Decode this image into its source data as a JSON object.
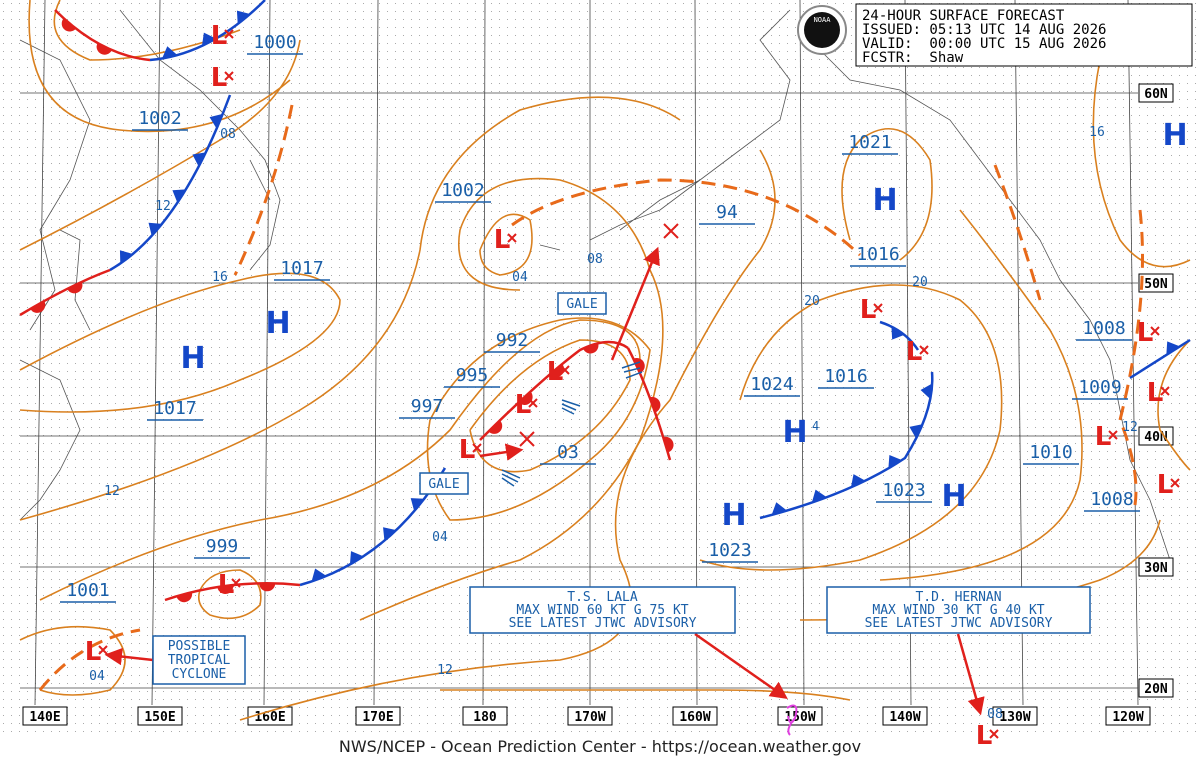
{
  "header": {
    "title": "24-HOUR SURFACE FORECAST",
    "issued": "ISSUED: 05:13 UTC 14 AUG 2026",
    "valid": "VALID:  00:00 UTC 15 AUG 2026",
    "forecaster": "FCSTR:  Shaw"
  },
  "logo": "NOAA",
  "longitude_labels": [
    "140E",
    "150E",
    "160E",
    "170E",
    "180",
    "170W",
    "160W",
    "150W",
    "140W",
    "130W",
    "120W"
  ],
  "latitude_labels": [
    "60N",
    "50N",
    "40N",
    "30N",
    "20N"
  ],
  "pressure_labels": [
    "1000",
    "1002",
    "1017",
    "1017",
    "1002",
    "992",
    "995",
    "997",
    "999",
    "1001",
    "03",
    "94",
    "1021",
    "1016",
    "1024",
    "1016",
    "1023",
    "1023",
    "1010",
    "1008",
    "1009",
    "1008"
  ],
  "isobar_labels": [
    "08",
    "12",
    "16",
    "04",
    "08",
    "20",
    "20",
    "12",
    "04",
    "12",
    "04",
    "16",
    "12",
    "08"
  ],
  "high_symbol": "H",
  "low_symbol": "L",
  "high_suffix": "4",
  "gale_labels": [
    "GALE",
    "GALE"
  ],
  "advisories": [
    {
      "lines": [
        "T.S. LALA",
        "MAX WIND 60 KT G 75 KT",
        "SEE LATEST JTWC ADVISORY"
      ]
    },
    {
      "lines": [
        "T.D. HERNAN",
        "MAX WIND 30 KT G 40 KT",
        "SEE LATEST JTWC ADVISORY"
      ]
    }
  ],
  "note": [
    "POSSIBLE",
    "TROPICAL",
    "CYCLONE"
  ],
  "footer": "NWS/NCEP - Ocean Prediction Center - https://ocean.weather.gov"
}
